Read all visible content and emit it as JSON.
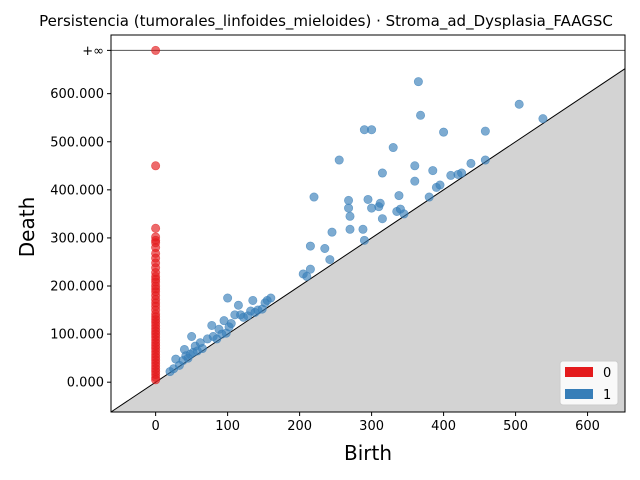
{
  "chart_data": {
    "type": "scatter",
    "title": "Persistencia (tumorales_linfoides_mieloides) · Stroma_ad_Dysplasia_FAAGSC",
    "xlabel": "Birth",
    "ylabel": "Death",
    "xlim": [
      -62,
      652
    ],
    "ylim": [
      -62,
      722
    ],
    "x_ticks": [
      0,
      100,
      200,
      300,
      400,
      500,
      600
    ],
    "x_tick_labels": [
      "0",
      "100",
      "200",
      "300",
      "400",
      "500",
      "600"
    ],
    "y_ticks": [
      0,
      100,
      200,
      300,
      400,
      500,
      600
    ],
    "y_tick_labels": [
      "0.000",
      "100.000",
      "200.000",
      "300.000",
      "400.000",
      "500.000",
      "600.000"
    ],
    "infinity_value": 690,
    "infinity_label": "+∞",
    "diagonal": true,
    "legend_position": "bottom-right",
    "series": [
      {
        "name": "0",
        "color": "#e41a1c",
        "points": [
          [
            0,
            690
          ],
          [
            0,
            450
          ],
          [
            0,
            320
          ],
          [
            0,
            302
          ],
          [
            0,
            295
          ],
          [
            0,
            290
          ],
          [
            0,
            280
          ],
          [
            0,
            268
          ],
          [
            0,
            258
          ],
          [
            0,
            248
          ],
          [
            0,
            238
          ],
          [
            0,
            228
          ],
          [
            0,
            220
          ],
          [
            0,
            214
          ],
          [
            0,
            208
          ],
          [
            0,
            200
          ],
          [
            0,
            194
          ],
          [
            0,
            188
          ],
          [
            0,
            180
          ],
          [
            0,
            172
          ],
          [
            0,
            165
          ],
          [
            0,
            158
          ],
          [
            0,
            150
          ],
          [
            0,
            142
          ],
          [
            0,
            136
          ],
          [
            0,
            130
          ],
          [
            0,
            124
          ],
          [
            0,
            118
          ],
          [
            0,
            112
          ],
          [
            0,
            106
          ],
          [
            0,
            100
          ],
          [
            0,
            94
          ],
          [
            0,
            88
          ],
          [
            0,
            82
          ],
          [
            0,
            76
          ],
          [
            0,
            70
          ],
          [
            0,
            64
          ],
          [
            0,
            58
          ],
          [
            0,
            52
          ],
          [
            0,
            46
          ],
          [
            0,
            40
          ],
          [
            0,
            34
          ],
          [
            0,
            28
          ],
          [
            0,
            22
          ],
          [
            0,
            16
          ],
          [
            0,
            10
          ],
          [
            0,
            5
          ]
        ]
      },
      {
        "name": "1",
        "color": "#377eb8",
        "points": [
          [
            20,
            22
          ],
          [
            25,
            28
          ],
          [
            28,
            48
          ],
          [
            33,
            35
          ],
          [
            38,
            45
          ],
          [
            40,
            68
          ],
          [
            42,
            55
          ],
          [
            45,
            50
          ],
          [
            48,
            58
          ],
          [
            50,
            95
          ],
          [
            52,
            62
          ],
          [
            55,
            75
          ],
          [
            58,
            65
          ],
          [
            62,
            82
          ],
          [
            65,
            70
          ],
          [
            72,
            90
          ],
          [
            78,
            118
          ],
          [
            80,
            95
          ],
          [
            85,
            90
          ],
          [
            88,
            110
          ],
          [
            92,
            100
          ],
          [
            95,
            128
          ],
          [
            98,
            102
          ],
          [
            100,
            175
          ],
          [
            102,
            115
          ],
          [
            105,
            122
          ],
          [
            110,
            140
          ],
          [
            115,
            160
          ],
          [
            118,
            140
          ],
          [
            122,
            135
          ],
          [
            128,
            138
          ],
          [
            132,
            148
          ],
          [
            135,
            170
          ],
          [
            138,
            145
          ],
          [
            142,
            150
          ],
          [
            148,
            152
          ],
          [
            152,
            165
          ],
          [
            155,
            170
          ],
          [
            160,
            175
          ],
          [
            205,
            225
          ],
          [
            210,
            220
          ],
          [
            215,
            235
          ],
          [
            215,
            283
          ],
          [
            220,
            385
          ],
          [
            235,
            278
          ],
          [
            242,
            255
          ],
          [
            245,
            312
          ],
          [
            255,
            462
          ],
          [
            268,
            378
          ],
          [
            268,
            362
          ],
          [
            270,
            318
          ],
          [
            270,
            345
          ],
          [
            288,
            318
          ],
          [
            290,
            295
          ],
          [
            290,
            525
          ],
          [
            295,
            380
          ],
          [
            300,
            525
          ],
          [
            300,
            362
          ],
          [
            310,
            365
          ],
          [
            312,
            372
          ],
          [
            315,
            435
          ],
          [
            315,
            340
          ],
          [
            330,
            488
          ],
          [
            335,
            355
          ],
          [
            338,
            388
          ],
          [
            340,
            360
          ],
          [
            345,
            350
          ],
          [
            360,
            450
          ],
          [
            360,
            418
          ],
          [
            365,
            625
          ],
          [
            368,
            555
          ],
          [
            380,
            385
          ],
          [
            385,
            440
          ],
          [
            390,
            405
          ],
          [
            395,
            410
          ],
          [
            400,
            520
          ],
          [
            410,
            430
          ],
          [
            420,
            432
          ],
          [
            425,
            435
          ],
          [
            438,
            455
          ],
          [
            458,
            462
          ],
          [
            458,
            522
          ],
          [
            505,
            578
          ],
          [
            538,
            548
          ]
        ]
      }
    ]
  }
}
